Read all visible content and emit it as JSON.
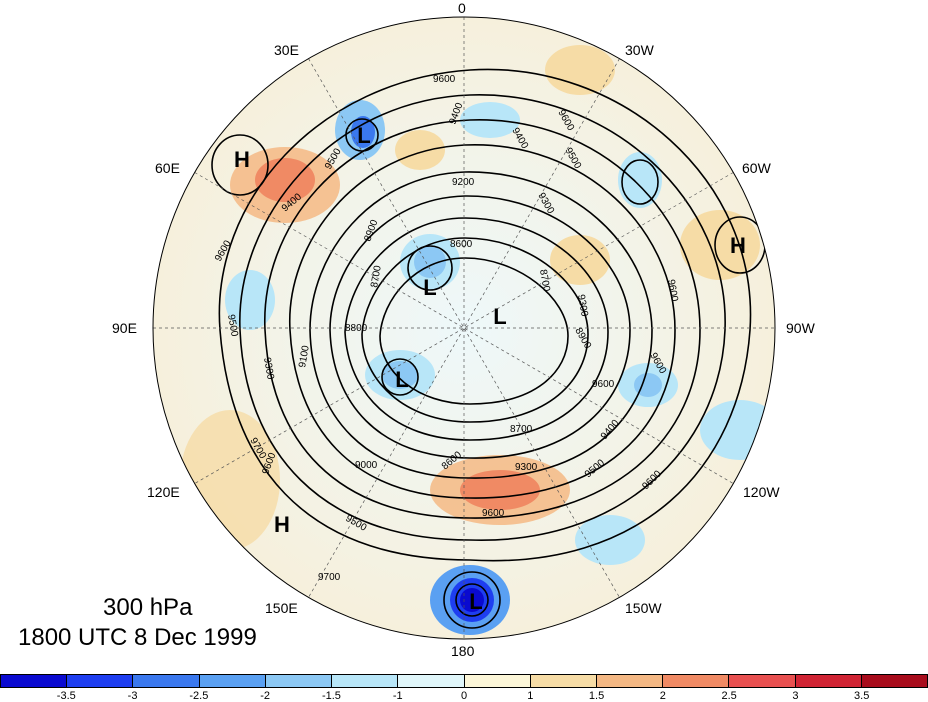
{
  "title": {
    "level": "300 hPa",
    "time": "1800 UTC 8 Dec 1999"
  },
  "longitude_labels": {
    "lon_0": "0",
    "lon_30w": "30W",
    "lon_60w": "60W",
    "lon_90w": "90W",
    "lon_120w": "120W",
    "lon_150w": "150W",
    "lon_180": "180",
    "lon_150e": "150E",
    "lon_120e": "120E",
    "lon_90e": "90E",
    "lon_60e": "60E",
    "lon_30e": "30E"
  },
  "pressure_centers": {
    "low_1": "L",
    "low_2": "L",
    "low_3": "L",
    "low_4": "L",
    "low_5": "L",
    "high_1": "H",
    "high_2": "H",
    "high_3": "H"
  },
  "contour_labels": [
    "9600",
    "9500",
    "9400",
    "9300",
    "9200",
    "9100",
    "9000",
    "8900",
    "8800",
    "8700",
    "8600",
    "8500",
    "9700"
  ],
  "colorbar": {
    "ticks": [
      "-3.5",
      "-3",
      "-2.5",
      "-2",
      "-1.5",
      "-1",
      "0",
      "1",
      "1.5",
      "2",
      "2.5",
      "3",
      "3.5"
    ],
    "colors": [
      "#0a0ad0",
      "#1e3ef0",
      "#3a78ee",
      "#5aa0f2",
      "#8cc8f4",
      "#b8e6f8",
      "#e0f6fa",
      "#fcf6d8",
      "#f6dca6",
      "#f4b884",
      "#f08a64",
      "#e85050",
      "#d02434",
      "#a80c1c"
    ]
  },
  "colors": {
    "land": "#f3ecd6",
    "ocean": "#e6f4f8",
    "contour": "#000000"
  }
}
